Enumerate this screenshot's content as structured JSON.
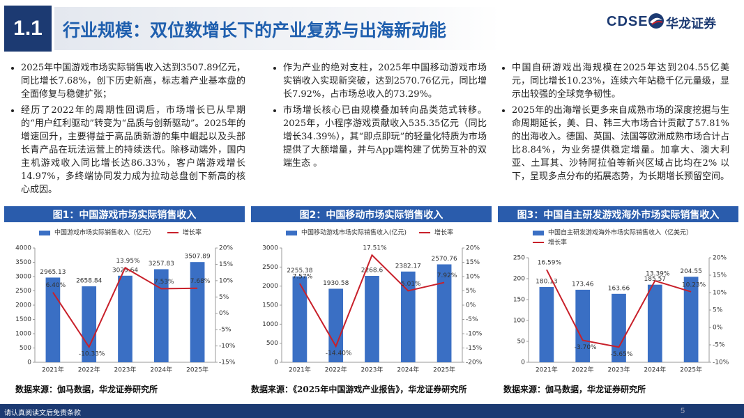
{
  "header": {
    "section": "1.1",
    "title": "行业规模：双位数增长下的产业复苏与出海新动能",
    "logo_text": "CDSE",
    "company": "华龙证券"
  },
  "columns": [
    {
      "bullets": [
        "2025年中国游戏市场实际销售收入达到3507.89亿元，同比增长7.68%，创下历史新高，标志着产业基本盘的全面修复与稳健扩张；",
        "经历了2022年的周期性回调后，市场增长已从早期的“用户红利驱动”转变为“品质与创新驱动”。2025年的增速回升，主要得益于高品质新游的集中崛起以及头部长青产品在玩法运营上的持续迭代。除移动端外，国内主机游戏收入同比增长达86.33%，客户端游戏增长14.97%，多终端协同发力成为拉动总盘创下新高的核心成因。"
      ]
    },
    {
      "bullets": [
        "作为产业的绝对支柱，2025年中国移动游戏市场实销收入实现新突破，达到2570.76亿元，同比增长7.92%，占市场总收入的73.29%。",
        "市场增长核心已由规模叠加转向品类范式转移。2025年，小程序游戏贡献收入535.35亿元（同比增长34.39%），其“即点即玩”的轻量化特质为市场提供了大额增量，并与App端构建了优势互补的双端生态 。"
      ]
    },
    {
      "bullets": [
        "中国自研游戏出海规模在2025年达到204.55亿美元，同比增长10.23%，连续六年站稳千亿元量级，显示出较强的全球竞争韧性。",
        "2025年的出海增长更多来自成熟市场的深度挖掘与生命周期延长，美、日、韩三大市场合计贡献了57.81%的出海收入。德国、英国、法国等欧洲成熟市场合计占比8.84%，为业务提供稳定增量。加拿大、澳大利亚、土耳其、沙特阿拉伯等新兴区域占比均在2% 以下，呈现多点分布的拓展态势，为长期增长预留空间。"
      ]
    }
  ],
  "chart_data": [
    {
      "type": "combo",
      "title": "图1：中国游戏市场实际销售收入",
      "categories": [
        "2021年",
        "2022年",
        "2023年",
        "2024年",
        "2025年"
      ],
      "series": [
        {
          "name": "中国游戏市场实际销售收入（亿元）",
          "type": "bar",
          "color": "#3a6fc4",
          "values": [
            2965.13,
            2658.84,
            3029.64,
            3257.83,
            3507.89
          ]
        },
        {
          "name": "增长率",
          "type": "line",
          "axis": "y2",
          "color": "#c8202a",
          "values": [
            6.4,
            -10.33,
            13.95,
            7.53,
            7.68
          ],
          "value_labels": [
            "6.40%",
            "-10.33%",
            "13.95%",
            "7.53%",
            "7.68%"
          ]
        }
      ],
      "ylim": [
        0,
        4000
      ],
      "yticks": [
        0,
        500,
        1000,
        1500,
        2000,
        2500,
        3000,
        3500,
        4000
      ],
      "y2lim": [
        -15,
        20
      ],
      "y2ticks": [
        {
          "value": -15,
          "label": "-15%"
        },
        {
          "value": -10,
          "label": "-10%"
        },
        {
          "value": -5,
          "label": "-5%"
        },
        {
          "value": 0,
          "label": "0%"
        },
        {
          "value": 5,
          "label": "5%"
        },
        {
          "value": 10,
          "label": "10%"
        },
        {
          "value": 15,
          "label": "15%"
        },
        {
          "value": 20,
          "label": "20%"
        }
      ],
      "source": "数据来源：伽马数据，华龙证券研究所"
    },
    {
      "type": "combo",
      "title": "图2：中国移动市场实际销售收入",
      "categories": [
        "2021年",
        "2022年",
        "2023年",
        "2024年",
        "2025年"
      ],
      "series": [
        {
          "name": "中国移动游戏市场实际销售收入(亿元)",
          "type": "bar",
          "color": "#3a6fc4",
          "values": [
            2255.38,
            1930.58,
            2268.6,
            2382.17,
            2570.76
          ]
        },
        {
          "name": "增长率",
          "type": "line",
          "axis": "y2",
          "color": "#c8202a",
          "values": [
            7.57,
            -14.4,
            17.51,
            5.01,
            7.92
          ],
          "value_labels": [
            "7.57%",
            "-14.40%",
            "17.51%",
            "5.01%",
            "7.92%"
          ]
        }
      ],
      "ylim": [
        0,
        3000
      ],
      "yticks": [
        0,
        500,
        1000,
        1500,
        2000,
        2500,
        3000
      ],
      "y2lim": [
        -20,
        20
      ],
      "y2ticks": [
        {
          "value": -20,
          "label": "-20%"
        },
        {
          "value": -15,
          "label": "-15%"
        },
        {
          "value": -10,
          "label": "-10%"
        },
        {
          "value": -5,
          "label": "-5%"
        },
        {
          "value": 0,
          "label": "0%"
        },
        {
          "value": 5,
          "label": "5%"
        },
        {
          "value": 10,
          "label": "10%"
        },
        {
          "value": 15,
          "label": "15%"
        },
        {
          "value": 20,
          "label": "20%"
        }
      ],
      "source": "数据来源：《2025年中国游戏产业报告》，华龙证券研究所"
    },
    {
      "type": "combo",
      "title": "图3：中国自主研发游戏海外市场实际销售收入",
      "categories": [
        "2021年",
        "2022年",
        "2023年",
        "2024年",
        "2025年"
      ],
      "series": [
        {
          "name": "中国自主研发游戏海外市场实际销售收入（亿美元）",
          "type": "bar",
          "color": "#3a6fc4",
          "values": [
            180.13,
            173.46,
            163.66,
            185.57,
            204.55
          ]
        },
        {
          "name": "增长率",
          "type": "line",
          "axis": "y2",
          "color": "#c8202a",
          "values": [
            16.59,
            -3.7,
            -5.65,
            13.39,
            10.23
          ],
          "value_labels": [
            "16.59%",
            "-3.70%",
            "-5.65%",
            "13.39%",
            "10.23%"
          ]
        }
      ],
      "ylim": [
        0,
        250
      ],
      "yticks": [
        0,
        50,
        100,
        150,
        200,
        250
      ],
      "y2lim": [
        -10,
        20
      ],
      "y2ticks": [
        {
          "value": -10,
          "label": "-10%"
        },
        {
          "value": -5,
          "label": "-5%"
        },
        {
          "value": 0,
          "label": "0%"
        },
        {
          "value": 5,
          "label": "5%"
        },
        {
          "value": 10,
          "label": "10%"
        },
        {
          "value": 15,
          "label": "15%"
        },
        {
          "value": 20,
          "label": "20%"
        }
      ],
      "source": "数据来源：伽马数据，华龙证券研究所"
    }
  ],
  "footer": {
    "disclaimer": "请认真阅读文后免责条款",
    "page": 5
  }
}
